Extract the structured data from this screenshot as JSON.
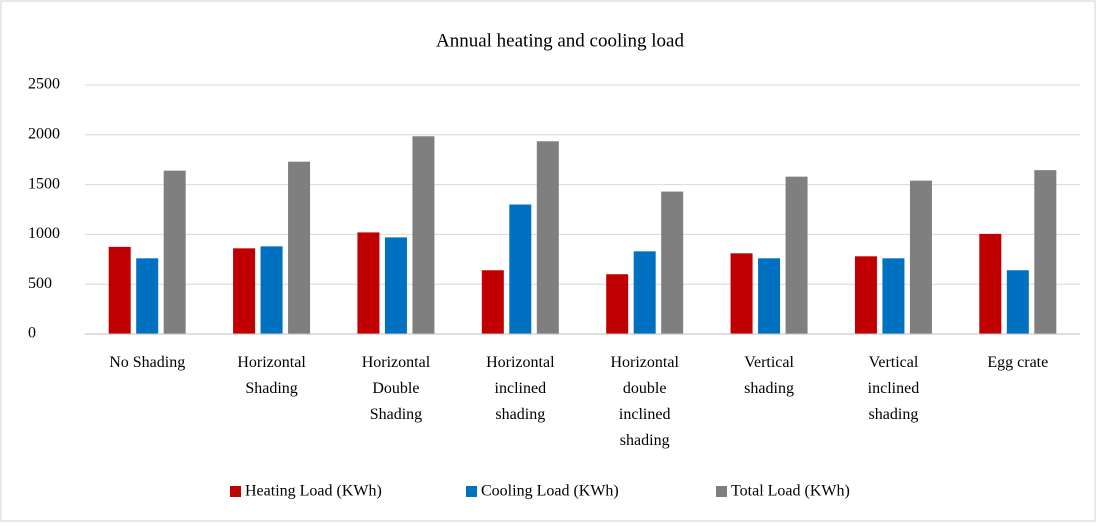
{
  "chart_data": {
    "type": "bar",
    "title": "Annual heating and cooling load",
    "categories": [
      "No Shading",
      "Horizontal Shading",
      "Horizontal Double Shading",
      "Horizontal inclined shading",
      "Horizontal double inclined shading",
      "Vertical shading",
      "Vertical inclined shading",
      "Egg crate"
    ],
    "series": [
      {
        "name": "Heating Load (KWh)",
        "color": "#c00000",
        "values": [
          875,
          860,
          1020,
          640,
          600,
          810,
          780,
          1005
        ]
      },
      {
        "name": "Cooling Load (KWh)",
        "color": "#0070c0",
        "values": [
          760,
          880,
          970,
          1300,
          830,
          760,
          760,
          640
        ]
      },
      {
        "name": "Total Load (KWh)",
        "color": "#7f7f7f",
        "values": [
          1640,
          1730,
          1985,
          1935,
          1430,
          1580,
          1540,
          1645
        ]
      }
    ],
    "ylim": [
      0,
      2500
    ],
    "yticks": [
      0,
      500,
      1000,
      1500,
      2000,
      2500
    ],
    "grid": true,
    "legend": "bottom"
  }
}
